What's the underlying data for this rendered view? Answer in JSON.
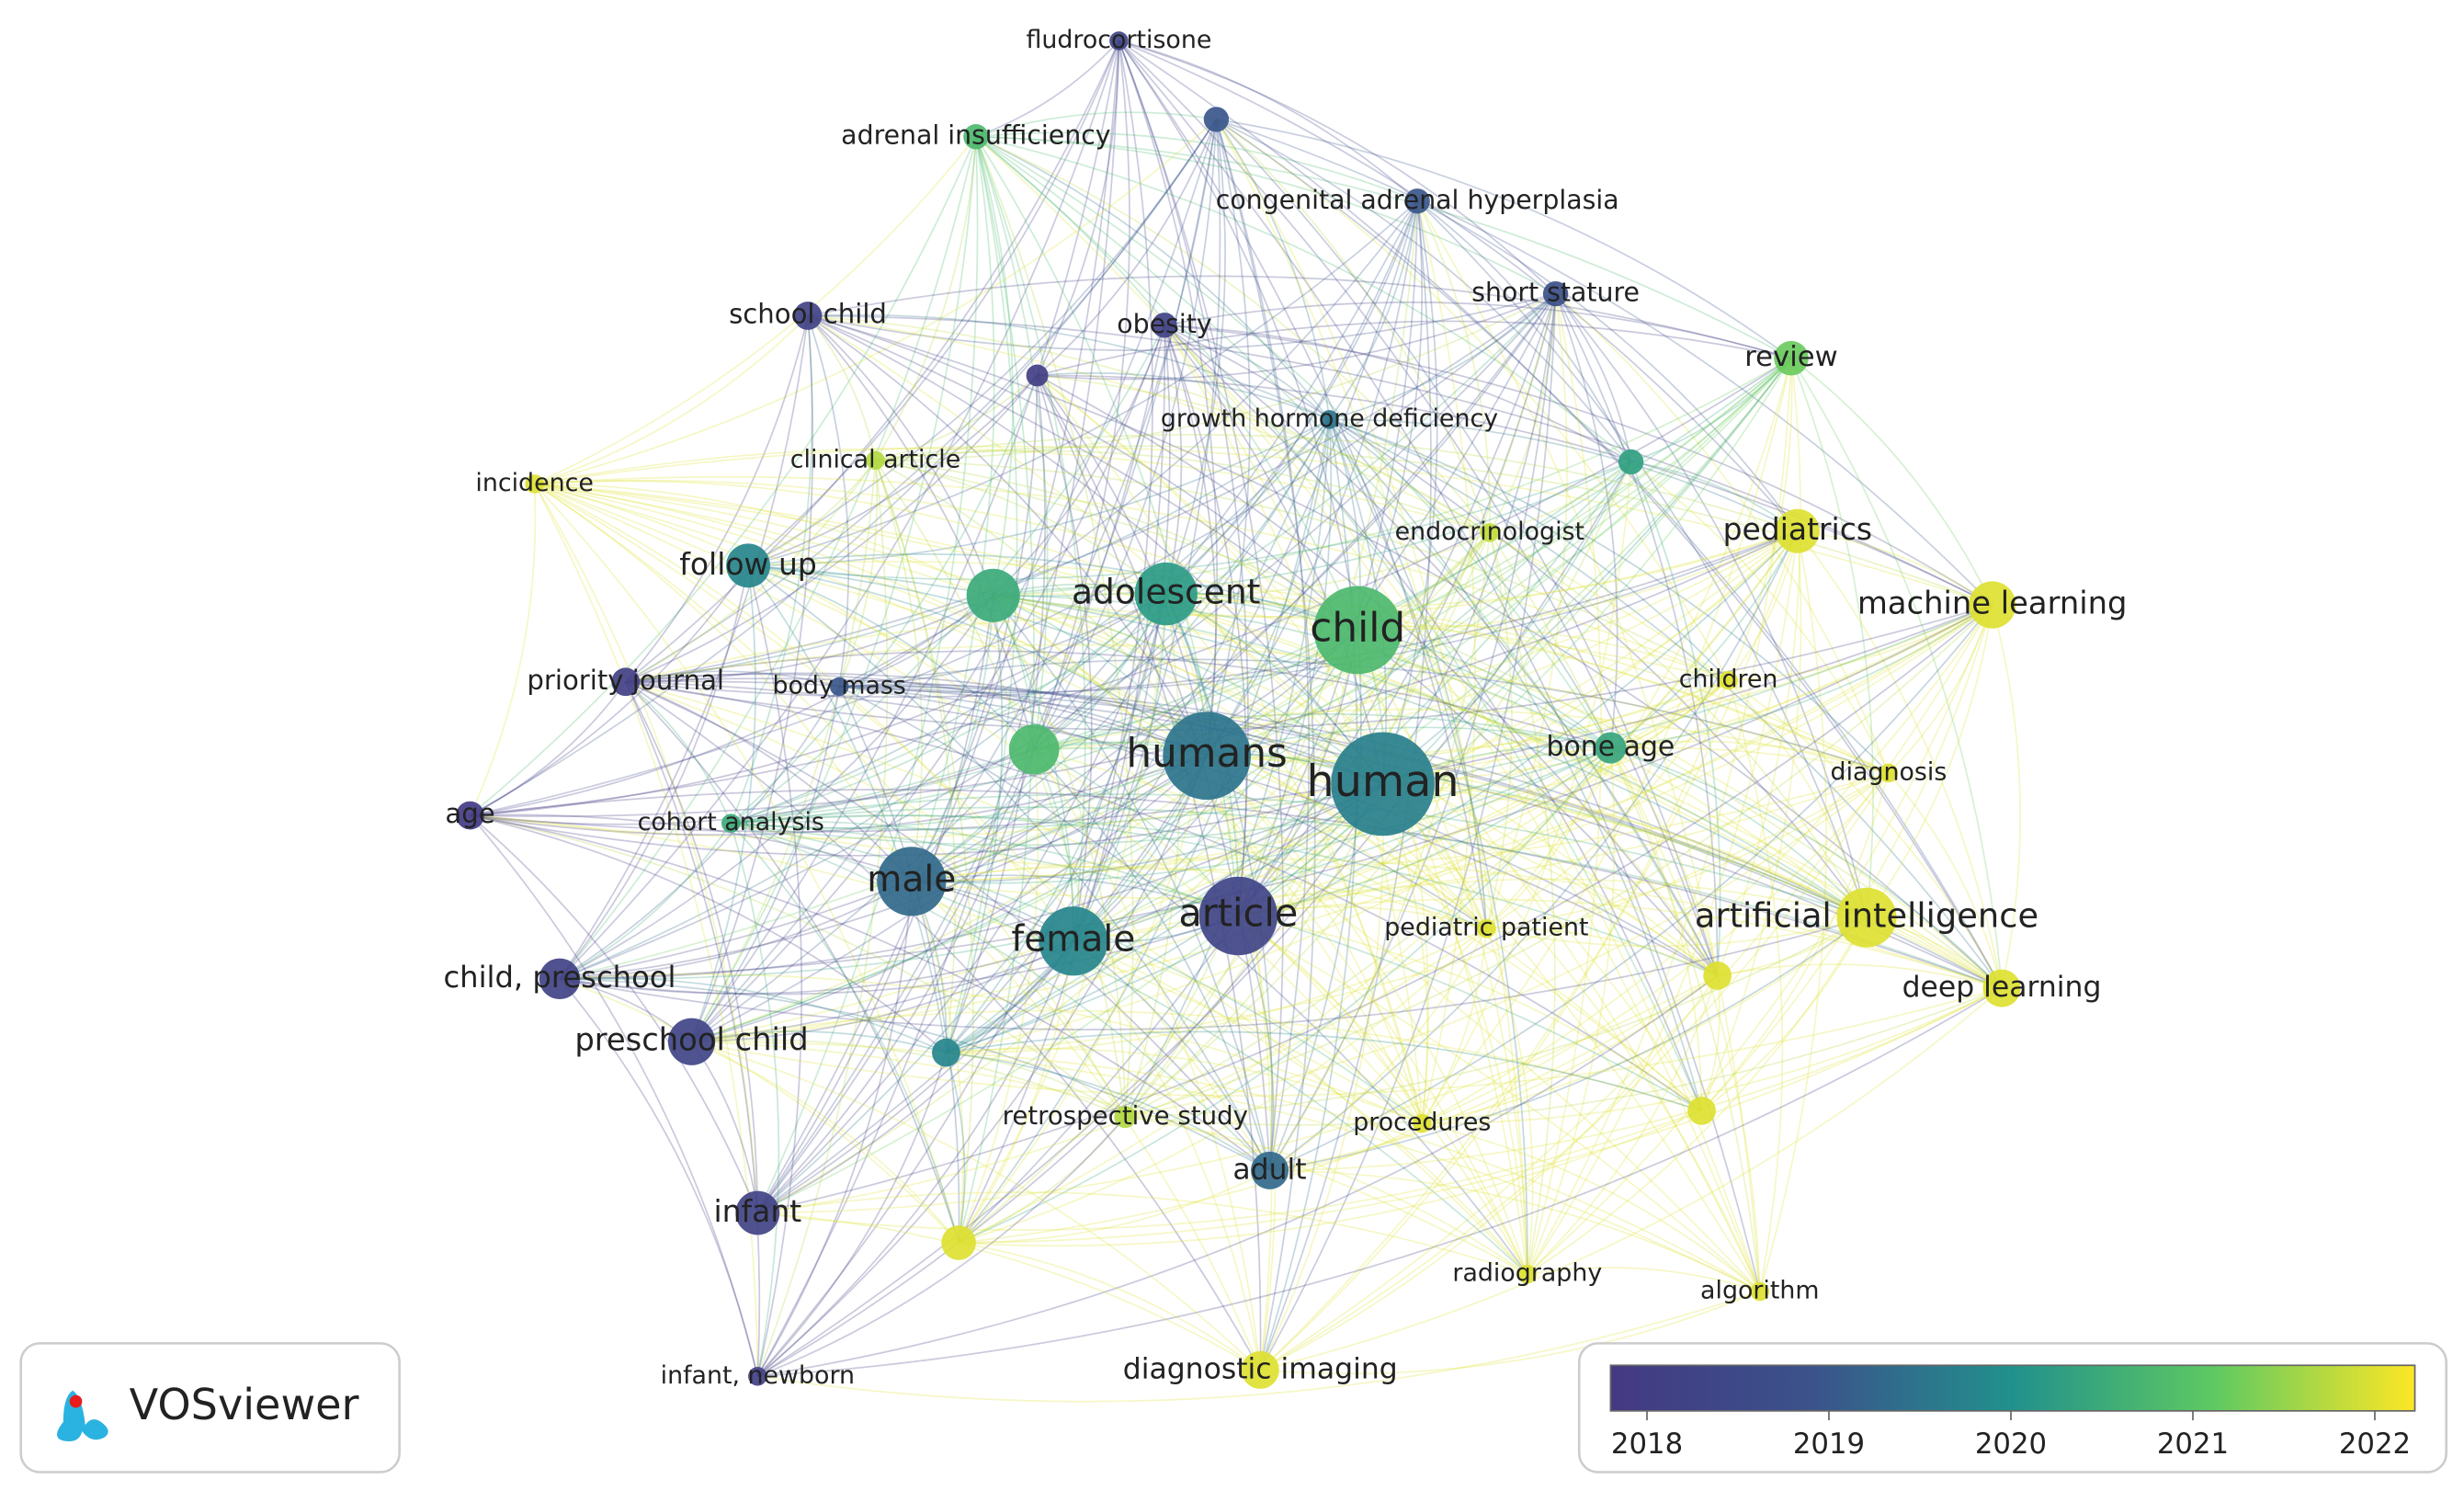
{
  "nodes": [
    {
      "label": "fludrocortisone",
      "year": 2018.3,
      "weight": 6
    },
    {
      "label": "adrenal insufficiency",
      "year": 2020.8,
      "weight": 8
    },
    {
      "year": 2019.0,
      "weight": 8
    },
    {
      "label": "congenital adrenal hyperplasia",
      "year": 2019.0,
      "weight": 8
    },
    {
      "label": "short stature",
      "year": 2018.8,
      "weight": 8
    },
    {
      "label": "school child",
      "year": 2018.2,
      "weight": 9
    },
    {
      "label": "obesity",
      "year": 2018.2,
      "weight": 8
    },
    {
      "year": 2018.0,
      "weight": 7
    },
    {
      "label": "review",
      "year": 2021.2,
      "weight": 11
    },
    {
      "label": "growth hormone deficiency",
      "year": 2019.5,
      "weight": 6
    },
    {
      "year": 2020.3,
      "weight": 8
    },
    {
      "label": "incidence",
      "year": 2022.0,
      "weight": 6
    },
    {
      "label": "clinical article",
      "year": 2021.7,
      "weight": 6
    },
    {
      "label": "endocrinologist",
      "year": 2021.8,
      "weight": 6
    },
    {
      "label": "pediatrics",
      "year": 2022.0,
      "weight": 14
    },
    {
      "label": "follow up",
      "year": 2019.8,
      "weight": 14
    },
    {
      "year": 2020.5,
      "weight": 17
    },
    {
      "label": "adolescent",
      "year": 2020.2,
      "weight": 20
    },
    {
      "label": "child",
      "year": 2020.8,
      "weight": 28
    },
    {
      "label": "machine learning",
      "year": 2022.0,
      "weight": 15
    },
    {
      "label": "priority journal",
      "year": 2018.1,
      "weight": 9
    },
    {
      "label": "body mass",
      "year": 2019.0,
      "weight": 6
    },
    {
      "label": "children",
      "year": 2022.0,
      "weight": 6
    },
    {
      "year": 2020.8,
      "weight": 16
    },
    {
      "label": "humans",
      "year": 2019.5,
      "weight": 28
    },
    {
      "label": "human",
      "year": 2019.7,
      "weight": 33
    },
    {
      "label": "bone age",
      "year": 2020.4,
      "weight": 10
    },
    {
      "label": "diagnosis",
      "year": 2022.0,
      "weight": 6
    },
    {
      "label": "age",
      "year": 2017.9,
      "weight": 9
    },
    {
      "label": "cohort analysis",
      "year": 2020.5,
      "weight": 6
    },
    {
      "label": "male",
      "year": 2019.3,
      "weight": 22
    },
    {
      "label": "article",
      "year": 2018.3,
      "weight": 25
    },
    {
      "label": "female",
      "year": 2019.8,
      "weight": 22
    },
    {
      "label": "artificial intelligence",
      "year": 2022.0,
      "weight": 19
    },
    {
      "label": "pediatric patient",
      "year": 2022.0,
      "weight": 6
    },
    {
      "year": 2022.0,
      "weight": 9
    },
    {
      "label": "deep learning",
      "year": 2022.0,
      "weight": 12
    },
    {
      "label": "child, preschool",
      "year": 2018.2,
      "weight": 13
    },
    {
      "label": "preschool child",
      "year": 2018.3,
      "weight": 15
    },
    {
      "year": 2019.8,
      "weight": 9
    },
    {
      "label": "retrospective study",
      "year": 2021.7,
      "weight": 7
    },
    {
      "label": "procedures",
      "year": 2022.0,
      "weight": 6
    },
    {
      "year": 2022.0,
      "weight": 9
    },
    {
      "label": "adult",
      "year": 2019.3,
      "weight": 12
    },
    {
      "label": "infant",
      "year": 2018.2,
      "weight": 14
    },
    {
      "year": 2022.0,
      "weight": 11
    },
    {
      "label": "radiography",
      "year": 2022.0,
      "weight": 6
    },
    {
      "label": "algorithm",
      "year": 2022.0,
      "weight": 6
    },
    {
      "label": "infant, newborn",
      "year": 2018.1,
      "weight": 6
    },
    {
      "label": "diagnostic imaging",
      "year": 2022.0,
      "weight": 12
    }
  ],
  "colorbar": {
    "range": [
      2017.8,
      2022.22
    ],
    "ticks": [
      2018,
      2019,
      2020,
      2021,
      2022
    ]
  },
  "logo": {
    "text": "VOSviewer"
  }
}
